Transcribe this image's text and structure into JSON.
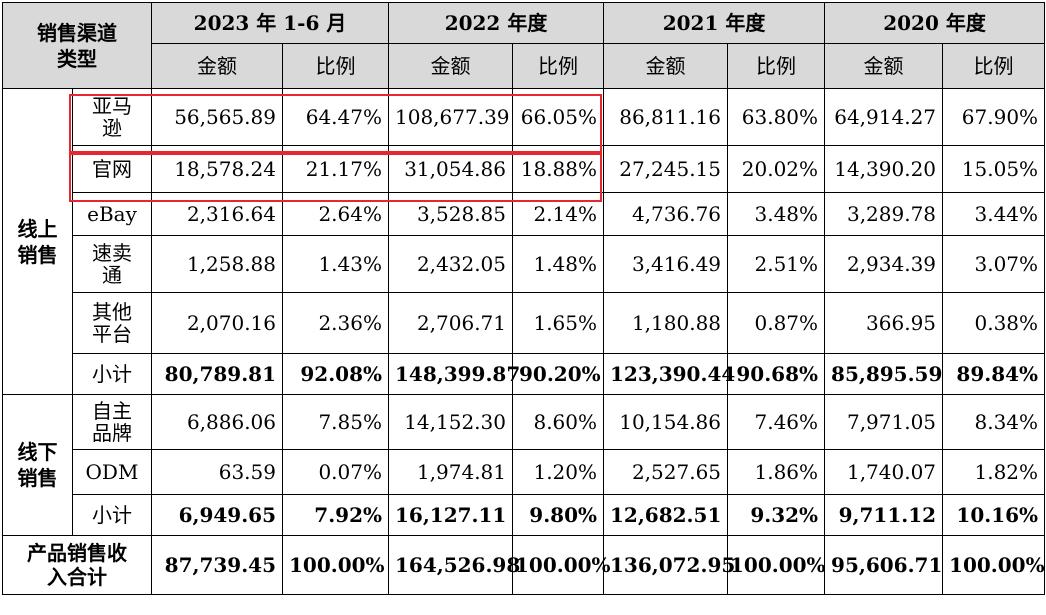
{
  "header": {
    "corner_line1": "销售渠道",
    "corner_line2": "类型",
    "years": [
      "2023 年 1-6 月",
      "2022 年度",
      "2021 年度",
      "2020 年度"
    ],
    "sub": {
      "amount": "金额",
      "ratio": "比例"
    }
  },
  "groups": {
    "online_line1": "线上",
    "online_line2": "销售",
    "offline_line1": "线下",
    "offline_line2": "销售"
  },
  "rows": [
    {
      "label": [
        "亚马",
        "逊"
      ],
      "values": [
        "56,565.89",
        "64.47%",
        "108,677.39",
        "66.05%",
        "86,811.16",
        "63.80%",
        "64,914.27",
        "67.90%"
      ]
    },
    {
      "label": [
        "官网"
      ],
      "values": [
        "18,578.24",
        "21.17%",
        "31,054.86",
        "18.88%",
        "27,245.15",
        "20.02%",
        "14,390.20",
        "15.05%"
      ]
    },
    {
      "label": [
        "eBay"
      ],
      "values": [
        "2,316.64",
        "2.64%",
        "3,528.85",
        "2.14%",
        "4,736.76",
        "3.48%",
        "3,289.78",
        "3.44%"
      ]
    },
    {
      "label": [
        "速卖",
        "通"
      ],
      "values": [
        "1,258.88",
        "1.43%",
        "2,432.05",
        "1.48%",
        "3,416.49",
        "2.51%",
        "2,934.39",
        "3.07%"
      ]
    },
    {
      "label": [
        "其他",
        "平台"
      ],
      "values": [
        "2,070.16",
        "2.36%",
        "2,706.71",
        "1.65%",
        "1,180.88",
        "0.87%",
        "366.95",
        "0.38%"
      ]
    },
    {
      "label": [
        "小计"
      ],
      "values": [
        "80,789.81",
        "92.08%",
        "148,399.87",
        "90.20%",
        "123,390.44",
        "90.68%",
        "85,895.59",
        "89.84%"
      ]
    },
    {
      "label": [
        "自主",
        "品牌"
      ],
      "values": [
        "6,886.06",
        "7.85%",
        "14,152.30",
        "8.60%",
        "10,154.86",
        "7.46%",
        "7,971.05",
        "8.34%"
      ]
    },
    {
      "label": [
        "ODM"
      ],
      "values": [
        "63.59",
        "0.07%",
        "1,974.81",
        "1.20%",
        "2,527.65",
        "1.86%",
        "1,740.07",
        "1.82%"
      ]
    },
    {
      "label": [
        "小计"
      ],
      "values": [
        "6,949.65",
        "7.92%",
        "16,127.11",
        "9.80%",
        "12,682.51",
        "9.32%",
        "9,711.12",
        "10.16%"
      ]
    }
  ],
  "total": {
    "label_line1": "产品销售收",
    "label_line2": "入合计",
    "values": [
      "87,739.45",
      "100.00%",
      "164,526.98",
      "100.00%",
      "136,072.95",
      "100.00%",
      "95,606.71",
      "100.00%"
    ]
  },
  "highlight_color": "#e8262d"
}
